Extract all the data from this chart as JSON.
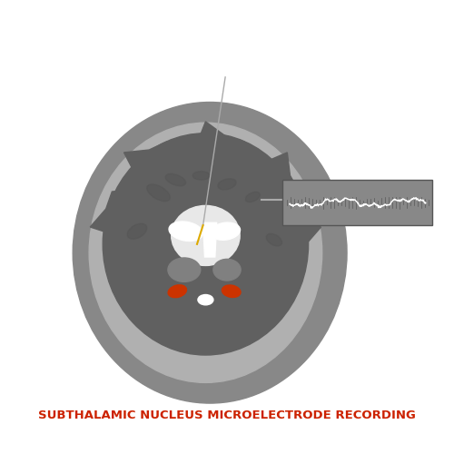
{
  "bg_color": "#ffffff",
  "head_outer_color": "#888888",
  "head_inner_color": "#b0b0b0",
  "brain_dark_color": "#606060",
  "brain_mid_color": "#909090",
  "white_matter_color": "#e8e8e8",
  "ventricle_color": "#f0f0f0",
  "stn_color": "#cc3300",
  "electrode_color": "#cccccc",
  "needle_color_top": "#aaaaaa",
  "needle_tip_color": "#ddaa00",
  "title_text": "SUBTHALAMIC NUCLEUS MICROELECTRODE RECORDING",
  "title_color": "#cc2200",
  "title_fontsize": 9.5
}
